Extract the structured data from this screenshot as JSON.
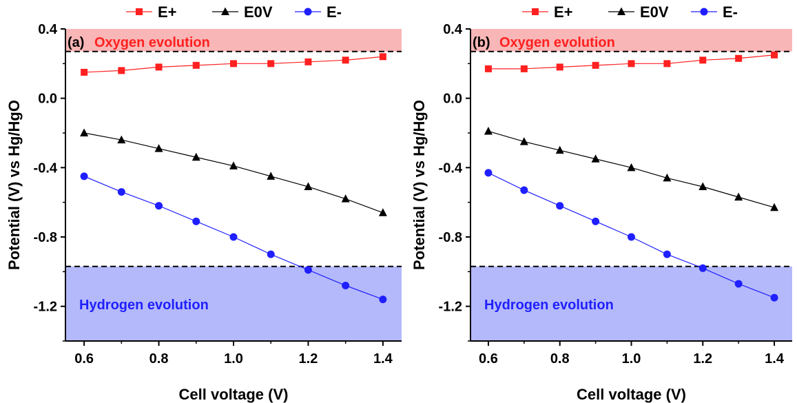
{
  "chart_data": [
    {
      "type": "line",
      "panel_label": "(a)",
      "xlabel": "Cell voltage (V)",
      "ylabel": "Potential (V) vs Hg/HgO",
      "xlim": [
        0.55,
        1.45
      ],
      "ylim": [
        -1.4,
        0.4
      ],
      "x_ticks": [
        "0.6",
        "0.8",
        "1.0",
        "1.2",
        "1.4"
      ],
      "y_ticks": [
        "0.4",
        "0.0",
        "-0.4",
        "-0.8",
        "-1.2"
      ],
      "x": [
        0.6,
        0.7,
        0.8,
        0.9,
        1.0,
        1.1,
        1.2,
        1.3,
        1.4
      ],
      "series": [
        {
          "name": "E+",
          "color": "#ff2020",
          "marker": "square",
          "values": [
            0.15,
            0.16,
            0.18,
            0.19,
            0.2,
            0.2,
            0.21,
            0.22,
            0.24
          ]
        },
        {
          "name": "E0V",
          "color": "#000000",
          "marker": "triangle",
          "values": [
            -0.2,
            -0.24,
            -0.29,
            -0.34,
            -0.39,
            -0.45,
            -0.51,
            -0.58,
            -0.66
          ]
        },
        {
          "name": "E-",
          "color": "#1f1fff",
          "marker": "circle",
          "values": [
            -0.45,
            -0.54,
            -0.62,
            -0.71,
            -0.8,
            -0.9,
            -0.99,
            -1.08,
            -1.16
          ]
        }
      ],
      "regions": [
        {
          "label": "Oxygen evolution",
          "y_from": 0.27,
          "y_to": 0.4,
          "fill": "#f9b6b6",
          "text_color": "#ff2020",
          "position": "top"
        },
        {
          "label": "Hydrogen evolution",
          "y_from": -1.4,
          "y_to": -0.97,
          "fill": "#b4b9fb",
          "text_color": "#1f1fff",
          "position": "bottom"
        }
      ],
      "reference_lines": [
        0.27,
        -0.97
      ],
      "legend_position": "top"
    },
    {
      "type": "line",
      "panel_label": "(b)",
      "xlabel": "Cell voltage (V)",
      "ylabel": "Potential (V) vs Hg/HgO",
      "xlim": [
        0.55,
        1.45
      ],
      "ylim": [
        -1.4,
        0.4
      ],
      "x_ticks": [
        "0.6",
        "0.8",
        "1.0",
        "1.2",
        "1.4"
      ],
      "y_ticks": [
        "0.4",
        "0.0",
        "-0.4",
        "-0.8",
        "-1.2"
      ],
      "x": [
        0.6,
        0.7,
        0.8,
        0.9,
        1.0,
        1.1,
        1.2,
        1.3,
        1.4
      ],
      "series": [
        {
          "name": "E+",
          "color": "#ff2020",
          "marker": "square",
          "values": [
            0.17,
            0.17,
            0.18,
            0.19,
            0.2,
            0.2,
            0.22,
            0.23,
            0.25
          ]
        },
        {
          "name": "E0V",
          "color": "#000000",
          "marker": "triangle",
          "values": [
            -0.19,
            -0.25,
            -0.3,
            -0.35,
            -0.4,
            -0.46,
            -0.51,
            -0.57,
            -0.63
          ]
        },
        {
          "name": "E-",
          "color": "#1f1fff",
          "marker": "circle",
          "values": [
            -0.43,
            -0.53,
            -0.62,
            -0.71,
            -0.8,
            -0.9,
            -0.98,
            -1.07,
            -1.15
          ]
        }
      ],
      "regions": [
        {
          "label": "Oxygen evolution",
          "y_from": 0.27,
          "y_to": 0.4,
          "fill": "#f9b6b6",
          "text_color": "#ff2020",
          "position": "top"
        },
        {
          "label": "Hydrogen evolution",
          "y_from": -1.4,
          "y_to": -0.97,
          "fill": "#b4b9fb",
          "text_color": "#1f1fff",
          "position": "bottom"
        }
      ],
      "reference_lines": [
        0.27,
        -0.97
      ],
      "legend_position": "top"
    }
  ]
}
